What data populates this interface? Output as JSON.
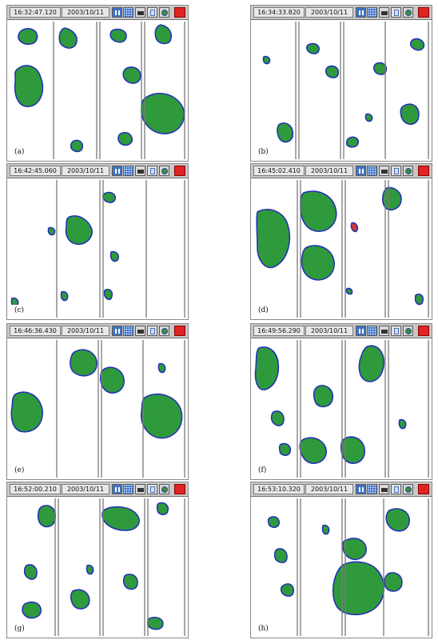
{
  "panels": [
    {
      "time": "16:32:47.120",
      "date": "2003/10/11",
      "label": "(a)"
    },
    {
      "time": "16:34:33.820",
      "date": "2003/10/11",
      "label": "(b)"
    },
    {
      "time": "16:42:45.060",
      "date": "2003/10/11",
      "label": "(c)"
    },
    {
      "time": "16:45:02.410",
      "date": "2003/10/11",
      "label": "(d)"
    },
    {
      "time": "16:46:36.430",
      "date": "2003/10/11",
      "label": "(e)"
    },
    {
      "time": "16:49:56.290",
      "date": "2003/10/11",
      "label": "(f)"
    },
    {
      "time": "16:52:00.210",
      "date": "2003/10/11",
      "label": "(g)"
    },
    {
      "time": "16:53:10.320",
      "date": "2003/10/11",
      "label": "(h)"
    }
  ],
  "icons": {
    "pause": "pause-icon",
    "grid": "grid-icon",
    "camera": "camera-icon",
    "sheet": "sheet-icon",
    "globe": "globe-icon",
    "stop": "stop-icon"
  },
  "colors": {
    "blob_fill": "#2f9a3c",
    "blob_edge": "#2434b3",
    "blob_halo": "#d93a2b",
    "divider": "#7a7a7a",
    "stop_button": "#e02424"
  }
}
